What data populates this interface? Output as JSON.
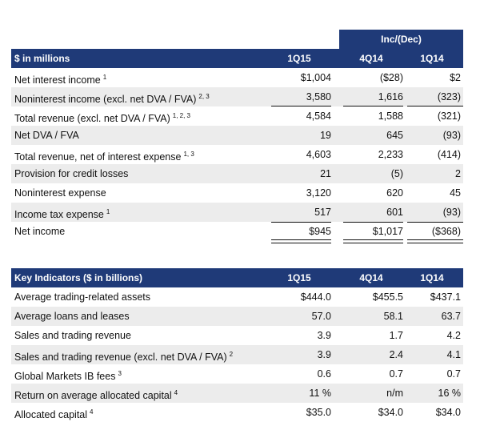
{
  "income_table": {
    "group_header": "Inc/(Dec)",
    "units_label": "$ in millions",
    "columns": [
      "1Q15",
      "4Q14",
      "1Q14"
    ],
    "rows": [
      {
        "label": "Net interest income",
        "note": "1",
        "v": [
          "$1,004",
          "($28)",
          "$2"
        ]
      },
      {
        "label": "Noninterest income (excl. net DVA / FVA)",
        "note": "2, 3",
        "v": [
          "3,580",
          "1,616",
          "(323)"
        ]
      },
      {
        "label": "Total revenue (excl. net DVA / FVA)",
        "note": "1, 2, 3",
        "v": [
          "4,584",
          "1,588",
          "(321)"
        ]
      },
      {
        "label": "Net DVA / FVA",
        "note": "",
        "v": [
          "19",
          "645",
          "(93)"
        ]
      },
      {
        "label": "Total revenue, net of interest expense",
        "note": "1, 3",
        "v": [
          "4,603",
          "2,233",
          "(414)"
        ]
      },
      {
        "label": "Provision for credit losses",
        "note": "",
        "v": [
          "21",
          "(5)",
          "2"
        ]
      },
      {
        "label": "Noninterest expense",
        "note": "",
        "v": [
          "3,120",
          "620",
          "45"
        ]
      },
      {
        "label": "Income tax expense",
        "note": "1",
        "v": [
          "517",
          "601",
          "(93)"
        ]
      },
      {
        "label": "Net income",
        "note": "",
        "v": [
          "$945",
          "$1,017",
          "($368)"
        ]
      }
    ]
  },
  "indicators_table": {
    "title": "Key Indicators ($ in billions)",
    "columns": [
      "1Q15",
      "4Q14",
      "1Q14"
    ],
    "rows": [
      {
        "label": "Average trading-related assets",
        "note": "",
        "v": [
          "$444.0",
          "$455.5",
          "$437.1"
        ]
      },
      {
        "label": "Average loans and leases",
        "note": "",
        "v": [
          "57.0",
          "58.1",
          "63.7"
        ]
      },
      {
        "label": "Sales and trading revenue",
        "note": "",
        "v": [
          "3.9",
          "1.7",
          "4.2"
        ]
      },
      {
        "label": "Sales and trading revenue (excl. net DVA / FVA)",
        "note": "2",
        "v": [
          "3.9",
          "2.4",
          "4.1"
        ]
      },
      {
        "label": "Global Markets IB fees",
        "note": "3",
        "v": [
          "0.6",
          "0.7",
          "0.7"
        ]
      },
      {
        "label": "Return on average allocated capital",
        "note": "4",
        "v": [
          "11  %",
          "n/m",
          "16  %"
        ]
      },
      {
        "label": "Allocated capital",
        "note": "4",
        "v": [
          "$35.0",
          "$34.0",
          "$34.0"
        ]
      }
    ]
  }
}
